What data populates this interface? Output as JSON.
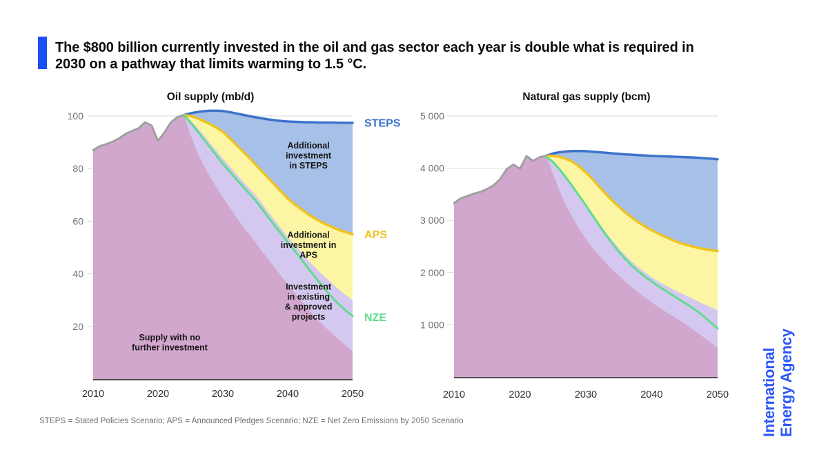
{
  "title": {
    "text": "The $800 billion currently invested in the oil and gas sector each year is double what is required in\n2030 on a pathway that limits warming to 1.5 °C."
  },
  "footnote": {
    "text": "STEPS = Stated Policies Scenario; APS = Announced Pledges Scenario; NZE = Net Zero Emissions by 2050 Scenario"
  },
  "logo": {
    "line1": "International",
    "line2": "Energy Agency"
  },
  "colors": {
    "accent": "#1A4FF5",
    "iea_blue": "#2B57F7",
    "grid": "#D8D8D8",
    "axis_label": "#6F6F6F",
    "x_label": "#2E2E2E",
    "baseline": "#4D4D4D",
    "annotation": "#161616",
    "chart_title": "#101010"
  },
  "chart_data": [
    {
      "type": "area",
      "title": "Oil supply (mb/d)",
      "xlabel": "",
      "ylabel": "mb/d",
      "xlim": [
        2010,
        2050
      ],
      "y_axis_max": 100,
      "x_ticks": [
        {
          "x": 2010,
          "label": "2010"
        },
        {
          "x": 2020,
          "label": "2020"
        },
        {
          "x": 2030,
          "label": "2030"
        },
        {
          "x": 2040,
          "label": "2040"
        },
        {
          "x": 2050,
          "label": "2050"
        }
      ],
      "y_ticks": [
        {
          "v": 100,
          "label": "100"
        },
        {
          "v": 80,
          "label": "80"
        },
        {
          "v": 60,
          "label": "60"
        },
        {
          "v": 40,
          "label": "40"
        },
        {
          "v": 20,
          "label": "20"
        }
      ],
      "series": [
        {
          "name": "STEPS",
          "kind": "area-line",
          "fill": "#A6C0E7",
          "stroke": "#3C73C9",
          "stroke_width": 3.5,
          "x0": 2024,
          "values": [
            100.4,
            101.0,
            101.5,
            101.8,
            102.0,
            102.0,
            101.9,
            101.5,
            101.0,
            100.5,
            100.0,
            99.5,
            99.1,
            98.7,
            98.4,
            98.1,
            97.9,
            97.8,
            97.7,
            97.6,
            97.6,
            97.5,
            97.5,
            97.5,
            97.4,
            97.4,
            97.4
          ]
        },
        {
          "name": "APS",
          "kind": "area-line",
          "fill": "#FCF6A4",
          "stroke": "#F1C21B",
          "stroke_width": 3.5,
          "x0": 2024,
          "values": [
            100.4,
            100.0,
            99.2,
            98.1,
            96.9,
            95.6,
            94.0,
            91.6,
            89.2,
            86.7,
            84.2,
            81.6,
            79.0,
            76.4,
            73.8,
            71.2,
            68.6,
            66.6,
            64.7,
            62.9,
            61.3,
            59.9,
            58.7,
            57.6,
            56.6,
            55.8,
            55.0
          ]
        },
        {
          "name": "investment-existing-approved",
          "kind": "area",
          "fill": "#D5C8F0",
          "x0": 2024,
          "values": [
            100.4,
            98.3,
            95.8,
            92.8,
            89.8,
            86.8,
            83.8,
            81.0,
            78.2,
            75.4,
            72.7,
            70.0,
            66.8,
            63.6,
            60.4,
            57.2,
            54.0,
            51.2,
            48.4,
            45.6,
            43.0,
            40.5,
            38.2,
            36.0,
            33.8,
            31.8,
            30.0
          ]
        },
        {
          "name": "supply-no-further-investment",
          "kind": "area",
          "fill": "#D2A7CD",
          "x0": 2024,
          "values": [
            100.4,
            93.0,
            86.5,
            81.5,
            77.0,
            73.0,
            69.0,
            65.4,
            61.8,
            58.4,
            55.2,
            52.0,
            48.7,
            45.5,
            42.3,
            39.1,
            36.0,
            33.0,
            30.0,
            27.1,
            24.3,
            21.5,
            19.2,
            17.0,
            14.8,
            12.6,
            10.5
          ]
        },
        {
          "name": "historical",
          "kind": "area-line",
          "fill": "#D2A7CD",
          "stroke": "#9FA0A0",
          "stroke_width": 3,
          "x0": 2010,
          "values": [
            87.0,
            88.5,
            89.3,
            90.2,
            91.5,
            93.2,
            94.3,
            95.3,
            97.6,
            96.4,
            90.5,
            93.8,
            97.6,
            99.6,
            100.4
          ]
        },
        {
          "name": "NZE",
          "kind": "line",
          "stroke": "#5EDC8D",
          "stroke_width": 3,
          "x0": 2024,
          "values": [
            100.4,
            97.5,
            94.5,
            91.3,
            88.2,
            85.0,
            81.8,
            79.0,
            76.2,
            73.4,
            70.7,
            68.0,
            64.8,
            61.5,
            58.3,
            55.2,
            52.0,
            49.0,
            45.8,
            42.6,
            39.5,
            36.4,
            33.4,
            30.6,
            28.1,
            25.9,
            24.0
          ]
        }
      ],
      "annotations": [
        {
          "lines": [
            "Additional",
            "investment",
            "in STEPS"
          ],
          "year": 2043.2,
          "value": 85
        },
        {
          "lines": [
            "Additional",
            "investment in",
            "APS"
          ],
          "year": 2043.2,
          "value": 51
        },
        {
          "lines": [
            "Investment",
            "in existing",
            "& approved",
            "projects"
          ],
          "year": 2043.2,
          "value": 29.5
        },
        {
          "lines": [
            "Supply with no",
            "further investment"
          ],
          "year": 2021.8,
          "value": 14
        }
      ],
      "end_labels": [
        {
          "text": "STEPS",
          "color": "#3C73C9",
          "value": 97.4
        },
        {
          "text": "APS",
          "color": "#F0C220",
          "value": 55.0
        },
        {
          "text": "NZE",
          "color": "#5EDC8D",
          "value": 23.5
        }
      ]
    },
    {
      "type": "area",
      "title": "Natural gas supply (bcm)",
      "xlabel": "",
      "ylabel": "bcm",
      "xlim": [
        2010,
        2050
      ],
      "y_axis_max": 5000,
      "x_ticks": [
        {
          "x": 2010,
          "label": "2010"
        },
        {
          "x": 2020,
          "label": "2020"
        },
        {
          "x": 2030,
          "label": "2030"
        },
        {
          "x": 2040,
          "label": "2040"
        },
        {
          "x": 2050,
          "label": "2050"
        }
      ],
      "y_ticks": [
        {
          "v": 5000,
          "label": "5 000"
        },
        {
          "v": 4000,
          "label": "4 000"
        },
        {
          "v": 3000,
          "label": "3 000"
        },
        {
          "v": 2000,
          "label": "2 000"
        },
        {
          "v": 1000,
          "label": "1 000"
        }
      ],
      "series": [
        {
          "name": "STEPS",
          "kind": "area-line",
          "fill": "#A6C0E7",
          "stroke": "#3C73C9",
          "stroke_width": 3.5,
          "x0": 2024,
          "values": [
            4240,
            4280,
            4305,
            4320,
            4330,
            4330,
            4325,
            4315,
            4305,
            4295,
            4285,
            4275,
            4265,
            4258,
            4250,
            4243,
            4237,
            4231,
            4226,
            4221,
            4216,
            4211,
            4206,
            4200,
            4192,
            4182,
            4170
          ]
        },
        {
          "name": "APS",
          "kind": "area-line",
          "fill": "#FCF6A4",
          "stroke": "#F1C21B",
          "stroke_width": 3.5,
          "x0": 2024,
          "values": [
            4240,
            4235,
            4215,
            4180,
            4120,
            4030,
            3920,
            3790,
            3650,
            3510,
            3380,
            3260,
            3150,
            3050,
            2960,
            2880,
            2810,
            2745,
            2685,
            2630,
            2580,
            2540,
            2505,
            2475,
            2450,
            2428,
            2410
          ]
        },
        {
          "name": "investment-existing-approved",
          "kind": "area",
          "fill": "#D5C8F0",
          "x0": 2024,
          "values": [
            4240,
            4150,
            4010,
            3850,
            3680,
            3500,
            3320,
            3130,
            2950,
            2780,
            2620,
            2470,
            2330,
            2210,
            2100,
            2000,
            1910,
            1830,
            1760,
            1690,
            1630,
            1570,
            1510,
            1450,
            1390,
            1335,
            1280
          ]
        },
        {
          "name": "supply-no-further-investment",
          "kind": "area",
          "fill": "#D2A7CD",
          "x0": 2024,
          "values": [
            4240,
            3900,
            3570,
            3290,
            3050,
            2840,
            2650,
            2480,
            2330,
            2190,
            2060,
            1940,
            1830,
            1720,
            1620,
            1520,
            1430,
            1340,
            1260,
            1180,
            1100,
            1020,
            930,
            840,
            750,
            655,
            560
          ]
        },
        {
          "name": "historical",
          "kind": "area-line",
          "fill": "#D2A7CD",
          "stroke": "#9FA0A0",
          "stroke_width": 3,
          "x0": 2010,
          "values": [
            3330,
            3420,
            3465,
            3510,
            3545,
            3600,
            3670,
            3790,
            3980,
            4070,
            3990,
            4230,
            4140,
            4210,
            4240
          ]
        },
        {
          "name": "NZE",
          "kind": "line",
          "stroke": "#5EDC8D",
          "stroke_width": 3,
          "x0": 2024,
          "values": [
            4220,
            4120,
            3980,
            3820,
            3650,
            3470,
            3290,
            3100,
            2910,
            2730,
            2560,
            2400,
            2260,
            2130,
            2020,
            1920,
            1830,
            1740,
            1660,
            1580,
            1500,
            1420,
            1340,
            1250,
            1150,
            1040,
            930
          ]
        }
      ],
      "annotations": [],
      "end_labels": []
    }
  ]
}
